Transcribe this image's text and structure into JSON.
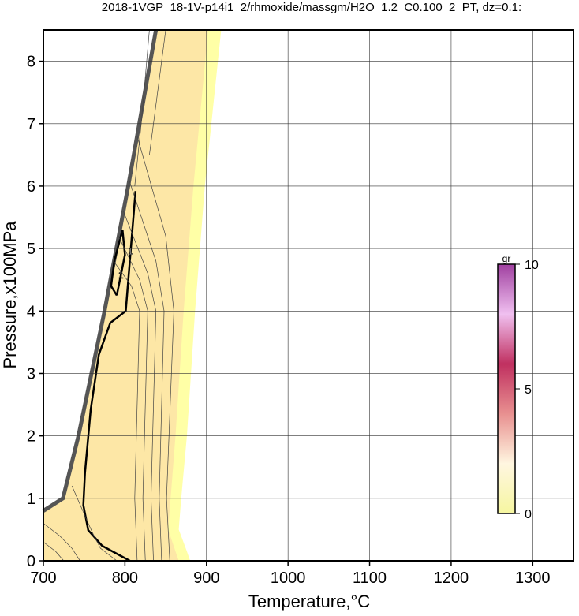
{
  "chart_data": {
    "type": "contour",
    "title": "2018-1VGP_18-1V-p14i1_2/rhmoxide/massgm/H2O_1.2_C0.100_2_PT, dz=0.1:",
    "x_label": "Temperature,°C",
    "y_label": "Pressure,x100MPa",
    "xlim": [
      700,
      1350
    ],
    "ylim": [
      0,
      8.5
    ],
    "xticks": [
      700,
      800,
      900,
      1000,
      1100,
      1200,
      1300
    ],
    "yticks": [
      0,
      1,
      2,
      3,
      4,
      5,
      6,
      7,
      8
    ],
    "grid": true,
    "regions": [
      {
        "color": "#ffffa6",
        "x": [
          700,
          880,
          876,
          866,
          869,
          876,
          886,
          898,
          918,
          838,
          804,
          775,
          743,
          724,
          700
        ],
        "y": [
          0,
          0,
          0.15,
          0.5,
          1,
          2,
          4,
          6,
          8.5,
          8.5,
          6,
          4,
          2,
          1,
          0.8
        ]
      },
      {
        "color": "#fde7a6",
        "x": [
          700,
          866,
          862,
          853,
          856,
          862,
          872,
          884,
          902,
          838,
          804,
          775,
          743,
          724,
          700
        ],
        "y": [
          0,
          0,
          0.15,
          0.5,
          1,
          2,
          4,
          6,
          8.5,
          8.5,
          6,
          4,
          2,
          1,
          0.8
        ]
      }
    ],
    "edge": {
      "color": "#555555",
      "x": [
        700,
        724,
        743,
        775,
        804,
        838
      ],
      "y": [
        0.8,
        1,
        2,
        4,
        6,
        8.5
      ]
    },
    "contours": [
      {
        "level": 1,
        "x": [
          813,
          801,
          782,
          768,
          758,
          751,
          749,
          755,
          772,
          806
        ],
        "y": [
          5.92,
          4.0,
          3.81,
          3.3,
          2.42,
          1.41,
          0.89,
          0.49,
          0.24,
          0
        ]
      },
      {
        "level": 1,
        "x": [
          790,
          800,
          797,
          787,
          783,
          790
        ],
        "y": [
          4.25,
          4.9,
          5.3,
          4.8,
          4.4,
          4.25
        ]
      },
      {
        "x": [
          815,
          812,
          814,
          816,
          818,
          808,
          786
        ],
        "y": [
          0,
          1,
          2,
          3,
          4,
          4.4,
          4.8
        ]
      },
      {
        "x": [
          825,
          822,
          824,
          826,
          828,
          818,
          792
        ],
        "y": [
          0,
          1,
          2,
          3,
          4,
          4.5,
          5.2
        ]
      },
      {
        "x": [
          835,
          832,
          834,
          836,
          838,
          828,
          798
        ],
        "y": [
          0,
          1,
          2,
          3,
          4,
          4.6,
          5.6
        ]
      },
      {
        "x": [
          845,
          842,
          844,
          846,
          848,
          838,
          805
        ],
        "y": [
          0,
          1,
          2,
          3,
          4,
          4.8,
          6.1
        ]
      },
      {
        "x": [
          855,
          851,
          854,
          857,
          860,
          850,
          815
        ],
        "y": [
          0,
          1,
          2,
          3,
          4,
          5.2,
          6.8
        ]
      },
      {
        "x": [
          700,
          720,
          735,
          745
        ],
        "y": [
          0.6,
          0.4,
          0.2,
          0
        ]
      },
      {
        "x": [
          700,
          715,
          725
        ],
        "y": [
          0.3,
          0.15,
          0
        ]
      },
      {
        "x": [
          735,
          745,
          755,
          762,
          770,
          790
        ],
        "y": [
          1.2,
          0.9,
          0.6,
          0.4,
          0.2,
          0
        ]
      },
      {
        "x": [
          812,
          820,
          830
        ],
        "y": [
          6,
          7,
          8.5
        ]
      },
      {
        "x": [
          830,
          840,
          850
        ],
        "y": [
          6.5,
          7.5,
          8.5
        ]
      }
    ],
    "colorbar": {
      "label": "gr",
      "lim": [
        0,
        10
      ],
      "ticks": [
        0,
        5,
        10
      ],
      "colors": [
        "#f6f6a0",
        "#fff6e0",
        "#e89090",
        "#c03060",
        "#f0c0f0",
        "#a040a0"
      ]
    }
  }
}
